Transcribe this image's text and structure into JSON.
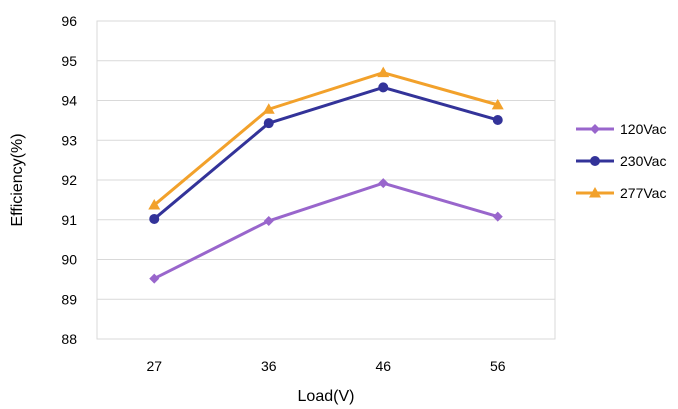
{
  "chart_data": {
    "type": "line",
    "title": "",
    "xlabel": "Load(V)",
    "ylabel": "Efficiency(%)",
    "categories": [
      "27",
      "36",
      "46",
      "56"
    ],
    "ylim": [
      88,
      96
    ],
    "yticks": [
      88,
      89,
      90,
      91,
      92,
      93,
      94,
      95,
      96
    ],
    "grid": "horizontal",
    "legend_position": "right",
    "series": [
      {
        "name": "120Vac",
        "values": [
          89.52,
          90.97,
          91.92,
          91.08
        ],
        "color": "#9966CC",
        "marker": "diamond"
      },
      {
        "name": "230Vac",
        "values": [
          91.02,
          93.43,
          94.33,
          93.51
        ],
        "color": "#333399",
        "marker": "circle"
      },
      {
        "name": "277Vac",
        "values": [
          91.37,
          93.78,
          94.7,
          93.89
        ],
        "color": "#F2A12B",
        "marker": "triangle"
      }
    ]
  }
}
